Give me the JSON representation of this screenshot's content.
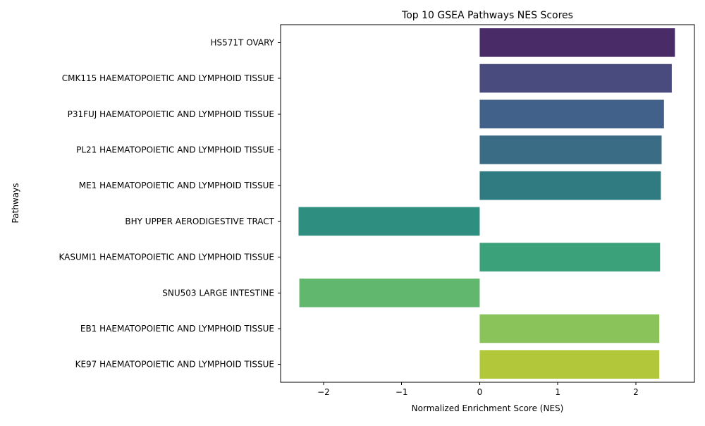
{
  "chart_data": {
    "type": "bar",
    "orientation": "horizontal",
    "title": "Top 10 GSEA Pathways NES Scores",
    "xlabel": "Normalized Enrichment Score (NES)",
    "ylabel": "Pathways",
    "xlim": [
      -2.55,
      2.75
    ],
    "xticks": [
      -2,
      -1,
      0,
      1,
      2
    ],
    "xtick_labels": [
      "−2",
      "−1",
      "0",
      "1",
      "2"
    ],
    "grid": false,
    "categories": [
      "HS571T OVARY",
      "CMK115 HAEMATOPOIETIC AND LYMPHOID TISSUE",
      "P31FUJ HAEMATOPOIETIC AND LYMPHOID TISSUE",
      "PL21 HAEMATOPOIETIC AND LYMPHOID TISSUE",
      "ME1 HAEMATOPOIETIC AND LYMPHOID TISSUE",
      "BHY UPPER AERODIGESTIVE TRACT",
      "KASUMI1 HAEMATOPOIETIC AND LYMPHOID TISSUE",
      "SNU503 LARGE INTESTINE",
      "EB1 HAEMATOPOIETIC AND LYMPHOID TISSUE",
      "KE97 HAEMATOPOIETIC AND LYMPHOID TISSUE"
    ],
    "values": [
      2.5,
      2.46,
      2.36,
      2.33,
      2.32,
      -2.32,
      2.31,
      -2.31,
      2.3,
      2.3
    ],
    "colors": [
      "#482b67",
      "#494a7e",
      "#41608a",
      "#3a6c85",
      "#2f7b81",
      "#2e8e7f",
      "#3aa17b",
      "#62b76f",
      "#8ac35a",
      "#b2c83a"
    ]
  }
}
